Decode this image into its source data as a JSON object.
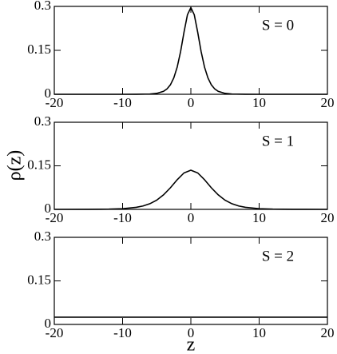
{
  "xlabel": "z",
  "ylabel": "ρ(z)",
  "chart_data": [
    {
      "type": "line",
      "annotation": "S = 0",
      "xlim": [
        -20,
        20
      ],
      "ylim": [
        0,
        0.3
      ],
      "xticks": [
        -20,
        -10,
        0,
        10,
        20
      ],
      "yticks": [
        0,
        0.15,
        0.3
      ],
      "x": [
        -20,
        -15,
        -10,
        -8,
        -6,
        -5,
        -4,
        -3.5,
        -3,
        -2.5,
        -2,
        -1.5,
        -1,
        -0.5,
        0,
        0.5,
        1,
        1.5,
        2,
        2.5,
        3,
        3.5,
        4,
        5,
        6,
        8,
        10,
        15,
        20
      ],
      "series": [
        {
          "color": "#000000",
          "values": [
            0,
            0,
            0,
            0.0001,
            0.001,
            0.0032,
            0.0102,
            0.0182,
            0.0322,
            0.056,
            0.0929,
            0.1463,
            0.2123,
            0.2715,
            0.296,
            0.2715,
            0.2123,
            0.1463,
            0.0929,
            0.056,
            0.0322,
            0.0182,
            0.0102,
            0.0032,
            0.001,
            0.0001,
            0,
            0,
            0
          ]
        }
      ]
    },
    {
      "type": "line",
      "annotation": "S = 1",
      "xlim": [
        -20,
        20
      ],
      "ylim": [
        0,
        0.3
      ],
      "xticks": [
        -20,
        -10,
        0,
        10,
        20
      ],
      "yticks": [
        0,
        0.15,
        0.3
      ],
      "x": [
        -20,
        -15,
        -12,
        -10,
        -8,
        -7,
        -6,
        -5,
        -4,
        -3,
        -2,
        -1,
        0,
        1,
        2,
        3,
        4,
        5,
        6,
        7,
        8,
        10,
        12,
        15,
        20
      ],
      "series": [
        {
          "color": "#000000",
          "values": [
            0,
            0.0002,
            0.0008,
            0.0024,
            0.007,
            0.0117,
            0.0195,
            0.0318,
            0.0501,
            0.0743,
            0.1021,
            0.1256,
            0.135,
            0.1256,
            0.1021,
            0.0743,
            0.0501,
            0.0318,
            0.0195,
            0.0117,
            0.007,
            0.0024,
            0.0008,
            0.0002,
            0
          ]
        }
      ]
    },
    {
      "type": "line",
      "annotation": "S = 2",
      "xlim": [
        -20,
        20
      ],
      "ylim": [
        0,
        0.3
      ],
      "xticks": [
        -20,
        -10,
        0,
        10,
        20
      ],
      "yticks": [
        0,
        0.15,
        0.3
      ],
      "x": [
        -20,
        20
      ],
      "series": [
        {
          "color": "#000000",
          "values": [
            0.025,
            0.025
          ]
        }
      ]
    }
  ]
}
